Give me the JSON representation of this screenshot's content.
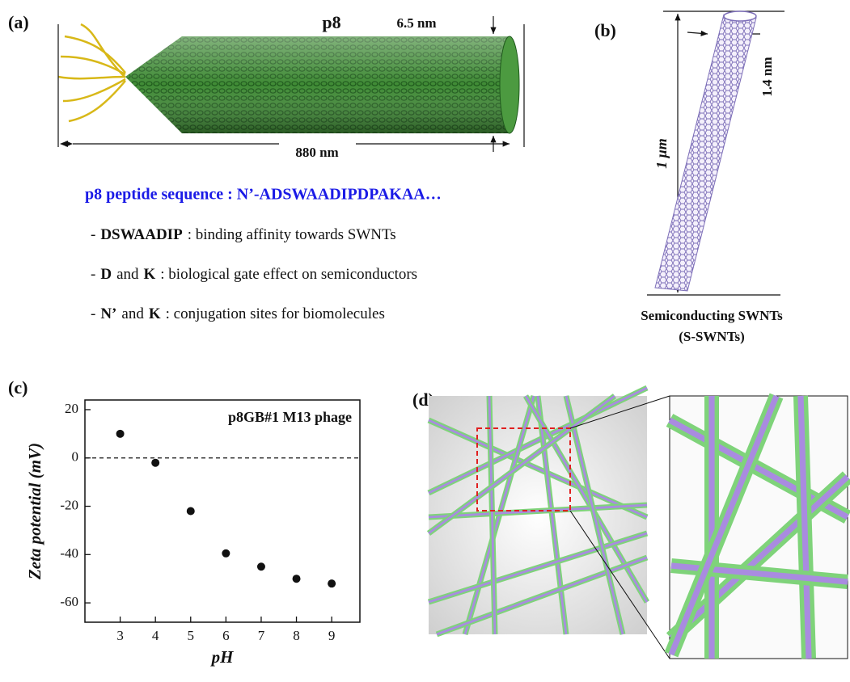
{
  "panel_a": {
    "label": "(a)",
    "name": "p8",
    "diameter": "6.5 nm",
    "length": "880 nm",
    "sequence_title": "p8 peptide sequence : N’-ADSWAADIPDPAKAA…",
    "items": [
      [
        {
          "text": "-"
        },
        {
          "text": "DSWAADIP",
          "bold": true
        },
        {
          "text": ": binding affinity towards SWNTs"
        }
      ],
      [
        {
          "text": "-"
        },
        {
          "text": "D",
          "bold": true
        },
        {
          "text": "and"
        },
        {
          "text": "K",
          "bold": true
        },
        {
          "text": ": biological gate effect on semiconductors"
        }
      ],
      [
        {
          "text": "-"
        },
        {
          "text": "N’",
          "bold": true
        },
        {
          "text": "and"
        },
        {
          "text": "K",
          "bold": true
        },
        {
          "text": ": conjugation sites for biomolecules"
        }
      ]
    ]
  },
  "panel_b": {
    "label": "(b)",
    "length": "1 μm",
    "diameter": "1.4 nm",
    "caption": [
      "Semiconducting SWNTs",
      "(S-SWNTs)"
    ]
  },
  "chart_data": {
    "type": "scatter",
    "label": "(c)",
    "annotation": "p8GB#1 M13 phage",
    "x_label": "pH",
    "y_label": "Zeta potential (mV)",
    "x": [
      3,
      4,
      5,
      6,
      7,
      8,
      9
    ],
    "values": [
      10,
      -2,
      -22,
      -39.5,
      -45,
      -50,
      -52
    ],
    "color": "#111111",
    "xlim": [
      2,
      9.8
    ],
    "ylim": [
      -68,
      24
    ],
    "xticks": [
      3,
      4,
      5,
      6,
      7,
      8,
      9
    ],
    "yticks": [
      -60,
      -40,
      -20,
      0,
      20
    ],
    "reference_line": 0
  },
  "panel_d": {
    "label": "(d)"
  }
}
